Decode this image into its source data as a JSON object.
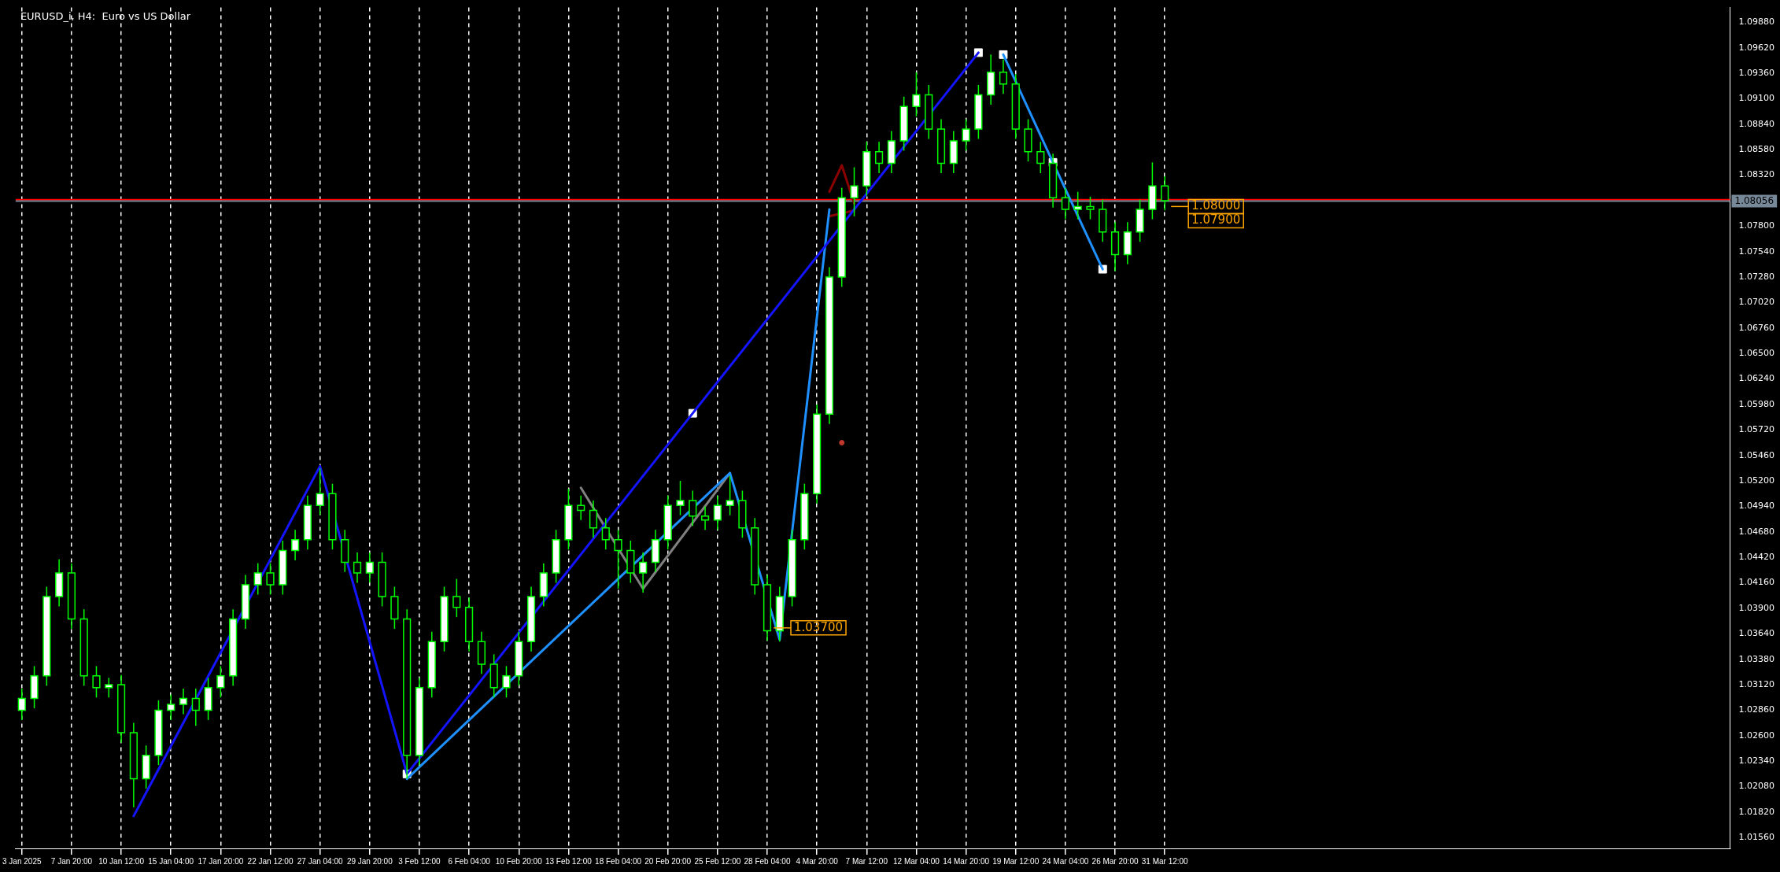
{
  "chart_data": {
    "type": "candlestick",
    "title": "EURUSD_i, H4:  Euro vs US Dollar",
    "color": "#00ff00",
    "colors": [
      "#ffffff",
      "#ffffff",
      "#ffffff",
      "#ffffff",
      "#000000",
      "#000000",
      "#000000",
      "#ffffff",
      "#000000",
      "#000000",
      "#ffffff",
      "#ffffff",
      "#ffffff",
      "#ffffff",
      "#000000",
      "#ffffff",
      "#ffffff",
      "#ffffff",
      "#ffffff",
      "#ffffff",
      "#000000",
      "#ffffff",
      "#ffffff",
      "#ffffff",
      "#ffffff",
      "#000000",
      "#000000",
      "#000000",
      "#ffffff",
      "#000000",
      "#000000",
      "#000000",
      "#ffffff",
      "#ffffff",
      "#ffffff",
      "#000000",
      "#000000",
      "#000000",
      "#000000",
      "#ffffff",
      "#ffffff",
      "#ffffff",
      "#ffffff",
      "#ffffff",
      "#ffffff",
      "#000000",
      "#000000",
      "#000000",
      "#000000",
      "#000000",
      "#ffffff",
      "#ffffff",
      "#ffffff",
      "#ffffff",
      "#000000",
      "#000000",
      "#ffffff",
      "#ffffff",
      "#000000",
      "#000000",
      "#000000",
      "#ffffff",
      "#ffffff",
      "#ffffff",
      "#ffffff",
      "#ffffff",
      "#ffffff",
      "#ffffff",
      "#ffffff",
      "#000000",
      "#ffffff",
      "#ffffff",
      "#ffffff",
      "#000000",
      "#000000",
      "#ffffff",
      "#ffffff",
      "#ffffff",
      "#ffffff",
      "#000000",
      "#000000",
      "#000000",
      "#000000",
      "#000000",
      "#000000",
      "#ffffff",
      "#000000",
      "#000000",
      "#000000",
      "#ffffff",
      "#ffffff",
      "#ffffff",
      "#000000",
      null,
      null,
      null,
      null,
      null,
      null,
      null,
      null,
      null,
      null,
      null,
      null,
      null,
      null,
      null,
      null,
      null,
      null,
      null,
      null,
      null,
      null,
      null,
      null,
      null,
      null,
      null,
      null,
      null,
      null,
      null,
      null,
      null,
      null,
      null,
      null,
      null,
      null,
      null,
      null,
      null,
      null,
      null,
      null,
      null
    ],
    "categories": [
      "3 Jan 2025",
      null,
      null,
      null,
      "7 Jan 20:00",
      null,
      null,
      null,
      "10 Jan 12:00",
      null,
      null,
      null,
      "15 Jan 04:00",
      null,
      null,
      null,
      "17 Jan 20:00",
      null,
      null,
      null,
      "22 Jan 12:00",
      null,
      null,
      null,
      "27 Jan 04:00",
      null,
      null,
      null,
      "29 Jan 20:00",
      null,
      null,
      null,
      "3 Feb 12:00",
      null,
      null,
      null,
      "6 Feb 04:00",
      null,
      null,
      null,
      "10 Feb 20:00",
      null,
      null,
      null,
      "13 Feb 12:00",
      null,
      null,
      null,
      "18 Feb 04:00",
      null,
      null,
      null,
      "20 Feb 20:00",
      null,
      null,
      null,
      "25 Feb 12:00",
      null,
      null,
      null,
      "28 Feb 04:00",
      null,
      null,
      null,
      "4 Mar 20:00",
      null,
      null,
      null,
      "7 Mar 12:00",
      null,
      null,
      null,
      "12 Mar 04:00",
      null,
      null,
      null,
      "14 Mar 20:00",
      null,
      null,
      null,
      "19 Mar 12:00",
      null,
      null,
      null,
      "24 Mar 04:00",
      null,
      null,
      null,
      "26 Mar 20:00",
      null,
      null,
      null,
      "31 Mar 12:00",
      null,
      null,
      null,
      null,
      null,
      null,
      null,
      null,
      null,
      null,
      null,
      null,
      null,
      null,
      null,
      null,
      null,
      null,
      null,
      null,
      null,
      null,
      null,
      null,
      null,
      null,
      null,
      null,
      null,
      null,
      null,
      null,
      null,
      null,
      null,
      null,
      null,
      null,
      null,
      null,
      null,
      null,
      null,
      null,
      null
    ],
    "ohlc": [
      [
        1.0286,
        1.0308,
        1.0276,
        1.0298
      ],
      [
        1.0298,
        1.0331,
        1.0288,
        1.0321
      ],
      [
        1.0321,
        1.0412,
        1.0311,
        1.0402
      ],
      [
        1.0402,
        1.044,
        1.0392,
        1.0426
      ],
      [
        1.0426,
        1.0436,
        1.0369,
        1.0379
      ],
      [
        1.0379,
        1.0389,
        1.0311,
        1.0321
      ],
      [
        1.0321,
        1.0331,
        1.0299,
        1.0309
      ],
      [
        1.0309,
        1.0319,
        1.0299,
        1.0312
      ],
      [
        1.0312,
        1.0322,
        1.0253,
        1.0263
      ],
      [
        1.0263,
        1.0273,
        1.0187,
        1.0216
      ],
      [
        1.0216,
        1.025,
        1.0206,
        1.024
      ],
      [
        1.024,
        1.0296,
        1.023,
        1.0286
      ],
      [
        1.0286,
        1.0302,
        1.0276,
        1.0292
      ],
      [
        1.0292,
        1.0308,
        1.0282,
        1.0298
      ],
      [
        1.0298,
        1.0308,
        1.027,
        1.0286
      ],
      [
        1.0286,
        1.0319,
        1.0276,
        1.0309
      ],
      [
        1.0309,
        1.0331,
        1.0299,
        1.0321
      ],
      [
        1.0321,
        1.0389,
        1.0311,
        1.0379
      ],
      [
        1.0379,
        1.0424,
        1.0369,
        1.0414
      ],
      [
        1.0414,
        1.0436,
        1.0404,
        1.0426
      ],
      [
        1.0426,
        1.0436,
        1.0404,
        1.0414
      ],
      [
        1.0414,
        1.0459,
        1.0404,
        1.0449
      ],
      [
        1.0449,
        1.047,
        1.0439,
        1.046
      ],
      [
        1.046,
        1.0505,
        1.045,
        1.0495
      ],
      [
        1.0495,
        1.0533,
        1.0485,
        1.0507
      ],
      [
        1.0507,
        1.0517,
        1.045,
        1.046
      ],
      [
        1.046,
        1.047,
        1.0427,
        1.0437
      ],
      [
        1.0437,
        1.0447,
        1.0416,
        1.0426
      ],
      [
        1.0426,
        1.0447,
        1.0416,
        1.0437
      ],
      [
        1.0437,
        1.0447,
        1.0392,
        1.0402
      ],
      [
        1.0402,
        1.0412,
        1.0369,
        1.0379
      ],
      [
        1.0379,
        1.0389,
        1.0216,
        1.024
      ],
      [
        1.024,
        1.0319,
        1.023,
        1.0309
      ],
      [
        1.0309,
        1.0366,
        1.0299,
        1.0356
      ],
      [
        1.0356,
        1.0412,
        1.0346,
        1.0402
      ],
      [
        1.0402,
        1.042,
        1.0381,
        1.0391
      ],
      [
        1.0391,
        1.0401,
        1.0346,
        1.0356
      ],
      [
        1.0356,
        1.0366,
        1.0323,
        1.0333
      ],
      [
        1.0333,
        1.0343,
        1.0299,
        1.0309
      ],
      [
        1.0309,
        1.0331,
        1.0299,
        1.0321
      ],
      [
        1.0321,
        1.0366,
        1.0311,
        1.0356
      ],
      [
        1.0356,
        1.0412,
        1.0346,
        1.0402
      ],
      [
        1.0402,
        1.0436,
        1.0392,
        1.0426
      ],
      [
        1.0426,
        1.047,
        1.0416,
        1.046
      ],
      [
        1.046,
        1.0512,
        1.045,
        1.0495
      ],
      [
        1.0495,
        1.0505,
        1.048,
        1.049
      ],
      [
        1.049,
        1.05,
        1.0462,
        1.0472
      ],
      [
        1.0472,
        1.0482,
        1.045,
        1.046
      ],
      [
        1.046,
        1.047,
        1.041,
        1.0449
      ],
      [
        1.0449,
        1.0459,
        1.0416,
        1.0426
      ],
      [
        1.0426,
        1.0447,
        1.0406,
        1.0437
      ],
      [
        1.0437,
        1.047,
        1.0427,
        1.046
      ],
      [
        1.046,
        1.0505,
        1.045,
        1.0495
      ],
      [
        1.0495,
        1.052,
        1.0485,
        1.05
      ],
      [
        1.05,
        1.051,
        1.0474,
        1.0484
      ],
      [
        1.0484,
        1.0494,
        1.047,
        1.048
      ],
      [
        1.048,
        1.0505,
        1.047,
        1.0495
      ],
      [
        1.0495,
        1.0525,
        1.0485,
        1.05
      ],
      [
        1.05,
        1.051,
        1.0462,
        1.0472
      ],
      [
        1.0472,
        1.0482,
        1.0404,
        1.0414
      ],
      [
        1.0414,
        1.0424,
        1.0357,
        1.0367
      ],
      [
        1.0367,
        1.0412,
        1.0356,
        1.0402
      ],
      [
        1.0402,
        1.047,
        1.0392,
        1.046
      ],
      [
        1.046,
        1.0517,
        1.045,
        1.0507
      ],
      [
        1.0507,
        1.0598,
        1.0497,
        1.0588
      ],
      [
        1.0588,
        1.0738,
        1.0578,
        1.0728
      ],
      [
        1.0728,
        1.0819,
        1.0718,
        1.0809
      ],
      [
        1.0809,
        1.084,
        1.079,
        1.0821
      ],
      [
        1.0821,
        1.0866,
        1.0811,
        1.0856
      ],
      [
        1.0856,
        1.0866,
        1.0834,
        1.0844
      ],
      [
        1.0844,
        1.0877,
        1.0834,
        1.0867
      ],
      [
        1.0867,
        1.0912,
        1.0857,
        1.0902
      ],
      [
        1.0902,
        1.0937,
        1.0892,
        1.0914
      ],
      [
        1.0914,
        1.0924,
        1.0869,
        1.0879
      ],
      [
        1.0879,
        1.0889,
        1.0834,
        1.0844
      ],
      [
        1.0844,
        1.0877,
        1.0834,
        1.0867
      ],
      [
        1.0867,
        1.0889,
        1.0857,
        1.0879
      ],
      [
        1.0879,
        1.0924,
        1.0869,
        1.0914
      ],
      [
        1.0914,
        1.0955,
        1.0904,
        1.0937
      ],
      [
        1.0937,
        1.095,
        1.0915,
        1.0925
      ],
      [
        1.0925,
        1.0935,
        1.0869,
        1.0879
      ],
      [
        1.0879,
        1.0889,
        1.0846,
        1.0856
      ],
      [
        1.0856,
        1.0866,
        1.0834,
        1.0844
      ],
      [
        1.0844,
        1.0854,
        1.0799,
        1.0809
      ],
      [
        1.0809,
        1.0819,
        1.0787,
        1.0797
      ],
      [
        1.0797,
        1.0815,
        1.0787,
        1.08
      ],
      [
        1.08,
        1.081,
        1.0787,
        1.0797
      ],
      [
        1.0797,
        1.0807,
        1.0764,
        1.0774
      ],
      [
        1.0774,
        1.0784,
        1.0734,
        1.0751
      ],
      [
        1.0751,
        1.0784,
        1.0741,
        1.0774
      ],
      [
        1.0774,
        1.0807,
        1.0764,
        1.0797
      ],
      [
        1.0797,
        1.0845,
        1.0787,
        1.0821
      ],
      [
        1.0821,
        1.0831,
        1.0796,
        1.0806
      ],
      null,
      null,
      null,
      null,
      null,
      null,
      null,
      null,
      null,
      null,
      null,
      null,
      null,
      null,
      null,
      null,
      null,
      null,
      null,
      null,
      null,
      null,
      null,
      null,
      null,
      null,
      null,
      null,
      null,
      null,
      null,
      null,
      null,
      null,
      null,
      null,
      null,
      null,
      null,
      null,
      null,
      null,
      null,
      null,
      null
    ],
    "series": [
      {
        "type": "line",
        "color": "#1414ff",
        "values": [
          null,
          null,
          null,
          null,
          null,
          null,
          null,
          null,
          null,
          1.0178,
          null,
          null,
          null,
          null,
          null,
          null,
          null,
          null,
          null,
          null,
          null,
          null,
          null,
          null,
          1.0535,
          null,
          null,
          null,
          null,
          null,
          null,
          1.0221,
          null,
          null,
          null,
          null,
          null,
          null,
          null,
          null,
          null,
          null,
          null,
          null,
          null,
          null,
          null,
          null,
          null,
          null,
          null,
          null,
          null,
          null,
          1.0589,
          null,
          null,
          null,
          null,
          null,
          null,
          null,
          null,
          null,
          null,
          null,
          null,
          null,
          null,
          null,
          null,
          null,
          null,
          null,
          null,
          null,
          null,
          1.0957,
          null,
          null,
          null,
          null,
          null,
          null,
          null,
          null,
          null,
          null,
          null,
          null,
          null,
          null,
          null,
          null,
          null,
          null,
          null,
          null,
          null,
          null,
          null,
          null,
          null,
          null,
          null,
          null,
          null,
          null,
          null,
          null,
          null,
          null,
          null,
          null,
          null,
          null,
          null,
          null,
          null,
          null,
          null,
          null,
          null,
          null,
          null,
          null,
          null,
          null,
          null,
          null,
          null,
          null,
          null,
          null,
          null,
          null,
          null,
          null
        ]
      },
      {
        "type": "line",
        "color": "#1e90ff",
        "values": [
          null,
          null,
          null,
          null,
          null,
          null,
          null,
          null,
          null,
          null,
          null,
          null,
          null,
          null,
          null,
          null,
          null,
          null,
          null,
          null,
          null,
          null,
          null,
          null,
          null,
          null,
          null,
          null,
          null,
          null,
          null,
          1.0216,
          null,
          null,
          null,
          null,
          null,
          null,
          null,
          null,
          null,
          null,
          null,
          null,
          null,
          null,
          null,
          null,
          null,
          null,
          null,
          null,
          null,
          null,
          null,
          null,
          null,
          1.0528,
          null,
          null,
          null,
          1.0358,
          null,
          null,
          null,
          1.0797,
          null,
          null,
          null,
          null,
          null,
          null,
          null,
          null,
          null,
          null,
          null,
          null,
          null,
          null,
          null,
          null,
          null,
          null,
          null,
          null,
          null,
          null,
          null,
          null,
          null,
          null,
          null,
          null,
          null,
          null,
          null,
          null,
          null,
          null,
          null,
          null,
          null,
          null,
          null,
          null,
          null,
          null,
          null,
          null,
          null,
          null,
          null,
          null,
          null,
          null,
          null,
          null,
          null,
          null,
          null,
          null,
          null,
          null,
          null,
          null,
          null,
          null,
          null,
          null,
          null,
          null,
          null,
          null,
          null,
          null,
          null,
          null
        ]
      },
      {
        "type": "line",
        "color": "#1e90ff",
        "values": [
          null,
          null,
          null,
          null,
          null,
          null,
          null,
          null,
          null,
          null,
          null,
          null,
          null,
          null,
          null,
          null,
          null,
          null,
          null,
          null,
          null,
          null,
          null,
          null,
          null,
          null,
          null,
          null,
          null,
          null,
          null,
          null,
          null,
          null,
          null,
          null,
          null,
          null,
          null,
          null,
          null,
          null,
          null,
          null,
          null,
          null,
          null,
          null,
          null,
          null,
          null,
          null,
          null,
          null,
          null,
          null,
          null,
          null,
          null,
          null,
          null,
          null,
          null,
          null,
          null,
          null,
          null,
          null,
          null,
          null,
          null,
          null,
          null,
          null,
          null,
          null,
          null,
          null,
          null,
          1.0955,
          null,
          null,
          null,
          1.0845,
          null,
          null,
          null,
          1.0736,
          null,
          null,
          null,
          null,
          null,
          null,
          null,
          null,
          null,
          null,
          null,
          null,
          null,
          null,
          null,
          null,
          null,
          null,
          null,
          null,
          null,
          null,
          null,
          null,
          null,
          null,
          null,
          null,
          null,
          null,
          null,
          null,
          null,
          null,
          null,
          null,
          null,
          null,
          null,
          null,
          null,
          null,
          null,
          null,
          null,
          null,
          null,
          null,
          null,
          null
        ]
      },
      {
        "type": "line",
        "color": "#808080",
        "values": [
          null,
          null,
          null,
          null,
          null,
          null,
          null,
          null,
          null,
          null,
          null,
          null,
          null,
          null,
          null,
          null,
          null,
          null,
          null,
          null,
          null,
          null,
          null,
          null,
          null,
          null,
          null,
          null,
          null,
          null,
          null,
          null,
          null,
          null,
          null,
          null,
          null,
          null,
          null,
          null,
          null,
          null,
          null,
          null,
          null,
          1.0513,
          null,
          null,
          null,
          null,
          1.041,
          null,
          null,
          null,
          null,
          null,
          null,
          1.0528,
          null,
          null,
          null,
          null,
          null,
          null,
          null,
          null,
          null,
          null,
          null,
          null,
          null,
          null,
          null,
          null,
          null,
          null,
          null,
          null,
          null,
          null,
          null,
          null,
          null,
          null,
          null,
          null,
          null,
          null,
          null,
          null,
          null,
          null,
          null,
          null,
          null,
          null,
          null,
          null,
          null,
          null,
          null,
          null,
          null,
          null,
          null,
          null,
          null,
          null,
          null,
          null,
          null,
          null,
          null,
          null,
          null,
          null,
          null,
          null,
          null,
          null,
          null,
          null,
          null,
          null,
          null,
          null,
          null,
          null,
          null,
          null,
          null,
          null,
          null,
          null,
          null,
          null,
          null,
          null
        ]
      },
      {
        "type": "line",
        "color": "#8b0000",
        "values": [
          null,
          null,
          null,
          null,
          null,
          null,
          null,
          null,
          null,
          null,
          null,
          null,
          null,
          null,
          null,
          null,
          null,
          null,
          null,
          null,
          null,
          null,
          null,
          null,
          null,
          null,
          null,
          null,
          null,
          null,
          null,
          null,
          null,
          null,
          null,
          null,
          null,
          null,
          null,
          null,
          null,
          null,
          null,
          null,
          null,
          null,
          null,
          null,
          null,
          null,
          null,
          null,
          null,
          null,
          null,
          null,
          null,
          null,
          null,
          null,
          null,
          null,
          null,
          null,
          null,
          1.0815,
          1.0842,
          1.0803,
          null,
          null,
          null,
          null,
          null,
          null,
          null,
          null,
          null,
          null,
          null,
          null,
          null,
          null,
          null,
          null,
          null,
          null,
          null,
          null,
          null,
          null,
          null,
          null,
          null,
          null,
          null,
          null,
          null,
          null,
          null,
          null,
          null,
          null,
          null,
          null,
          null,
          null,
          null,
          null,
          null,
          null,
          null,
          null,
          null,
          null,
          null,
          null,
          null,
          null,
          null,
          null,
          null,
          null,
          null,
          null,
          null,
          null,
          null,
          null,
          null,
          null,
          null,
          null,
          null,
          null,
          null,
          null,
          null,
          null
        ]
      },
      {
        "type": "line",
        "color": "#8b0000",
        "values": [
          null,
          null,
          null,
          null,
          null,
          null,
          null,
          null,
          null,
          null,
          null,
          null,
          null,
          null,
          null,
          null,
          null,
          null,
          null,
          null,
          null,
          null,
          null,
          null,
          null,
          null,
          null,
          null,
          null,
          null,
          null,
          null,
          null,
          null,
          null,
          null,
          null,
          null,
          null,
          null,
          null,
          null,
          null,
          null,
          null,
          null,
          null,
          null,
          null,
          null,
          null,
          null,
          null,
          null,
          null,
          null,
          null,
          null,
          null,
          null,
          null,
          null,
          null,
          null,
          null,
          1.079,
          null,
          1.0796,
          null,
          null,
          null,
          null,
          null,
          null,
          null,
          null,
          null,
          null,
          null,
          null,
          null,
          null,
          null,
          null,
          null,
          null,
          null,
          null,
          null,
          null,
          null,
          null,
          null,
          null,
          null,
          null,
          null,
          null,
          null,
          null,
          null,
          null,
          null,
          null,
          null,
          null,
          null,
          null,
          null,
          null,
          null,
          null,
          null,
          null,
          null,
          null,
          null,
          null,
          null,
          null,
          null,
          null,
          null,
          null,
          null,
          null,
          null,
          null,
          null,
          null,
          null,
          null,
          null,
          null,
          null,
          null,
          null,
          null
        ]
      },
      {
        "type": "scatter",
        "color": "#ffffff",
        "marker": "square",
        "values": [
          null,
          null,
          null,
          null,
          null,
          null,
          null,
          null,
          null,
          null,
          null,
          null,
          null,
          null,
          null,
          null,
          null,
          null,
          null,
          null,
          null,
          null,
          null,
          null,
          null,
          null,
          null,
          null,
          null,
          null,
          null,
          1.0221,
          null,
          null,
          null,
          null,
          null,
          null,
          null,
          null,
          null,
          null,
          null,
          null,
          null,
          null,
          null,
          null,
          null,
          null,
          null,
          null,
          null,
          null,
          1.0589,
          null,
          null,
          null,
          null,
          null,
          null,
          null,
          null,
          null,
          null,
          null,
          null,
          null,
          null,
          null,
          null,
          null,
          null,
          null,
          null,
          null,
          null,
          1.0957,
          null,
          1.0955,
          null,
          null,
          null,
          1.0845,
          null,
          null,
          null,
          1.0736,
          null,
          null,
          null,
          null,
          null,
          null,
          null,
          null,
          null,
          null,
          null,
          null,
          null,
          null,
          null,
          null,
          null,
          null,
          null,
          null,
          null,
          null,
          null,
          null,
          null,
          null,
          null,
          null,
          null,
          null,
          null,
          null,
          null,
          null,
          null,
          null,
          null,
          null,
          null,
          null,
          null,
          null,
          null,
          null,
          null,
          null,
          null,
          null,
          null,
          null
        ]
      },
      {
        "type": "scatter",
        "color": "#c0392b",
        "marker": "circle",
        "values": [
          null,
          null,
          null,
          null,
          null,
          null,
          null,
          null,
          null,
          null,
          null,
          null,
          null,
          null,
          null,
          null,
          null,
          null,
          null,
          null,
          null,
          null,
          null,
          null,
          null,
          null,
          null,
          null,
          null,
          null,
          null,
          null,
          null,
          null,
          null,
          null,
          null,
          null,
          null,
          null,
          null,
          null,
          null,
          null,
          null,
          null,
          null,
          null,
          null,
          null,
          null,
          null,
          null,
          null,
          null,
          null,
          null,
          null,
          null,
          null,
          null,
          null,
          null,
          null,
          null,
          null,
          1.0559,
          null,
          null,
          null,
          null,
          null,
          null,
          null,
          null,
          null,
          null,
          null,
          null,
          null,
          null,
          null,
          null,
          null,
          null,
          null,
          null,
          null,
          null,
          null,
          null,
          null,
          null,
          null,
          null,
          null,
          null,
          null,
          null,
          null,
          null,
          null,
          null,
          null,
          null,
          null,
          null,
          null,
          null,
          null,
          null,
          null,
          null,
          null,
          null,
          null,
          null,
          null,
          null,
          null,
          null,
          null,
          null,
          null,
          null,
          null,
          null,
          null,
          null,
          null,
          null,
          null,
          null,
          null,
          null,
          null,
          null,
          null
        ]
      }
    ],
    "ylim": [
      1.0145,
      1.1003
    ],
    "yticks": [
      {
        "value": 1.0988,
        "label": "1.09880"
      },
      {
        "value": 1.0962,
        "label": "1.09620"
      },
      {
        "value": 1.0936,
        "label": "1.09360"
      },
      {
        "value": 1.091,
        "label": "1.09100"
      },
      {
        "value": 1.0884,
        "label": "1.08840"
      },
      {
        "value": 1.0858,
        "label": "1.08580"
      },
      {
        "value": 1.0832,
        "label": "1.08320"
      },
      {
        "value": 1.078,
        "label": "1.07800"
      },
      {
        "value": 1.0754,
        "label": "1.07540"
      },
      {
        "value": 1.0728,
        "label": "1.07280"
      },
      {
        "value": 1.0702,
        "label": "1.07020"
      },
      {
        "value": 1.0676,
        "label": "1.06760"
      },
      {
        "value": 1.065,
        "label": "1.06500"
      },
      {
        "value": 1.0624,
        "label": "1.06240"
      },
      {
        "value": 1.0598,
        "label": "1.05980"
      },
      {
        "value": 1.0572,
        "label": "1.05720"
      },
      {
        "value": 1.0546,
        "label": "1.05460"
      },
      {
        "value": 1.052,
        "label": "1.05200"
      },
      {
        "value": 1.0494,
        "label": "1.04940"
      },
      {
        "value": 1.0468,
        "label": "1.04680"
      },
      {
        "value": 1.0442,
        "label": "1.04420"
      },
      {
        "value": 1.0416,
        "label": "1.04160"
      },
      {
        "value": 1.039,
        "label": "1.03900"
      },
      {
        "value": 1.0364,
        "label": "1.03640"
      },
      {
        "value": 1.0338,
        "label": "1.03380"
      },
      {
        "value": 1.0312,
        "label": "1.03120"
      },
      {
        "value": 1.0286,
        "label": "1.02860"
      },
      {
        "value": 1.026,
        "label": "1.02600"
      },
      {
        "value": 1.0234,
        "label": "1.02340"
      },
      {
        "value": 1.0208,
        "label": "1.02080"
      },
      {
        "value": 1.0182,
        "label": "1.01820"
      },
      {
        "value": 1.0156,
        "label": "1.01560"
      }
    ],
    "grid": "x",
    "ref_lines": [
      {
        "axis": "y",
        "value": 1.0807,
        "color": "#ff0000"
      },
      {
        "axis": "y",
        "value": 1.08056,
        "label": "1.08056",
        "color": "#778899"
      }
    ],
    "annotations": [
      {
        "text": "1.03700",
        "x": "28 Feb 04:00",
        "y": 1.037
      },
      {
        "text": "1.08000",
        "x": "31 Mar 12:00",
        "y": 1.08
      },
      "1.07900"
    ]
  }
}
